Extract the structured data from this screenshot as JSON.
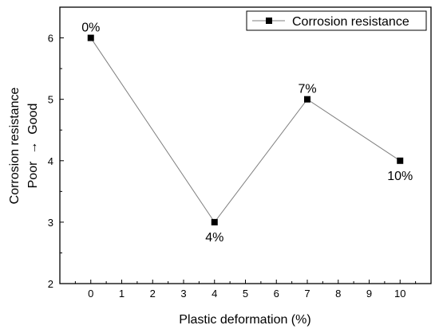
{
  "chart_data": {
    "type": "line",
    "xlabel": "Plastic deformation (%)",
    "ylabel_line1": "Corrosion resistance",
    "ylabel_line2": "Poor  →  Good",
    "xlim": [
      -1,
      11
    ],
    "ylim": [
      2,
      6.5
    ],
    "xticks": [
      0,
      1,
      2,
      3,
      4,
      5,
      6,
      7,
      8,
      9,
      10
    ],
    "yticks": [
      2,
      3,
      4,
      5,
      6
    ],
    "grid": false,
    "legend_position": "top-right",
    "series": [
      {
        "name": "Corrosion resistance",
        "marker": "square",
        "color": "#000000",
        "line_color": "#7f7f7f",
        "points": [
          {
            "x": 0,
            "y": 6,
            "label": "0%"
          },
          {
            "x": 4,
            "y": 3,
            "label": "4%"
          },
          {
            "x": 7,
            "y": 5,
            "label": "7%"
          },
          {
            "x": 10,
            "y": 4,
            "label": "10%"
          }
        ]
      }
    ]
  }
}
